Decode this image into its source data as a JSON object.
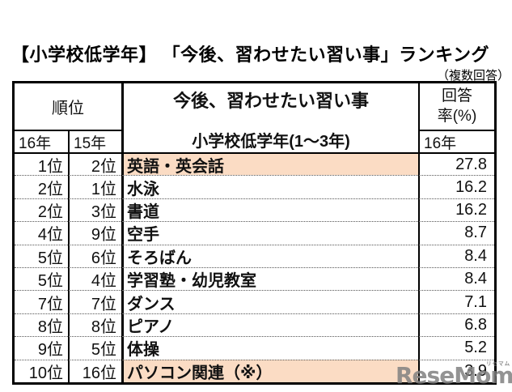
{
  "title": "【小学校低学年】 「今後、習わせたい習い事」ランキング",
  "subtitle": "（複数回答）",
  "chart_data": {
    "type": "table",
    "title": "【小学校低学年】 「今後、習わせたい習い事」ランキング",
    "note": "複数回答",
    "header": {
      "rank_group_label": "順位",
      "rank_year_current": "16年",
      "rank_year_previous": "15年",
      "lesson_label": "今後、習わせたい習い事",
      "lesson_sublabel": "小学校低学年(1～3年)",
      "rate_label_line1": "回答",
      "rate_label_line2": "率(%)",
      "rate_year_label": "16年"
    },
    "rows": [
      {
        "rank_2016": "1位",
        "rank_2015": "2位",
        "lesson": "英語・英会話",
        "rate_pct": 27.8,
        "highlight": true
      },
      {
        "rank_2016": "2位",
        "rank_2015": "1位",
        "lesson": "水泳",
        "rate_pct": 16.2,
        "highlight": false
      },
      {
        "rank_2016": "2位",
        "rank_2015": "3位",
        "lesson": "書道",
        "rate_pct": 16.2,
        "highlight": false
      },
      {
        "rank_2016": "4位",
        "rank_2015": "9位",
        "lesson": "空手",
        "rate_pct": 8.7,
        "highlight": false
      },
      {
        "rank_2016": "5位",
        "rank_2015": "6位",
        "lesson": "そろばん",
        "rate_pct": 8.4,
        "highlight": false
      },
      {
        "rank_2016": "5位",
        "rank_2015": "4位",
        "lesson": "学習塾・幼児教室",
        "rate_pct": 8.4,
        "highlight": false
      },
      {
        "rank_2016": "7位",
        "rank_2015": "7位",
        "lesson": "ダンス",
        "rate_pct": 7.1,
        "highlight": false
      },
      {
        "rank_2016": "8位",
        "rank_2015": "8位",
        "lesson": "ピアノ",
        "rate_pct": 6.8,
        "highlight": false
      },
      {
        "rank_2016": "9位",
        "rank_2015": "5位",
        "lesson": "体操",
        "rate_pct": 5.2,
        "highlight": false
      },
      {
        "rank_2016": "10位",
        "rank_2015": "16位",
        "lesson": "パソコン関連（※）",
        "rate_pct": 3.9,
        "highlight": true
      }
    ]
  },
  "watermark": {
    "text": "ReseMom",
    "ruby": "リセマム",
    "dot": "."
  },
  "colors": {
    "highlight_row": "#fbdcc4",
    "border": "#000000",
    "watermark_gray": "#808080"
  }
}
